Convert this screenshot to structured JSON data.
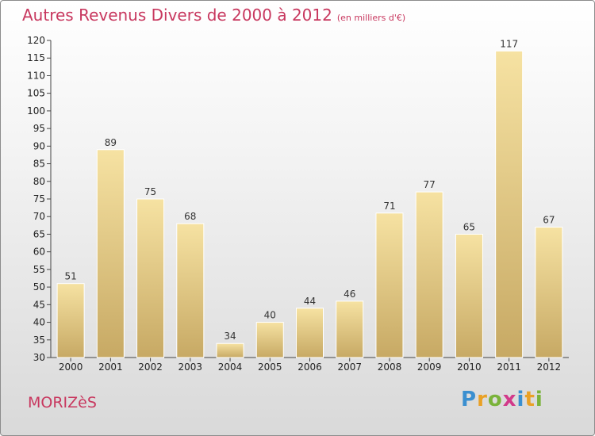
{
  "title": "Autres Revenus Divers de 2000 à 2012",
  "subtitle": "(en milliers d'€)",
  "place_name": "MORIZèS",
  "logo": {
    "letters": [
      "P",
      "r",
      "o",
      "x",
      "i",
      "t",
      "i"
    ],
    "colors": [
      "#3a8fd0",
      "#e9a126",
      "#7ab33a",
      "#d23a8a",
      "#3a8fd0",
      "#e9a126",
      "#7ab33a"
    ]
  },
  "colors": {
    "title": "#c8385f",
    "bar_light": "#f6e2a2",
    "bar_dark": "#c7a964"
  },
  "chart_data": {
    "type": "bar",
    "categories": [
      "2000",
      "2001",
      "2002",
      "2003",
      "2004",
      "2005",
      "2006",
      "2007",
      "2008",
      "2009",
      "2010",
      "2011",
      "2012"
    ],
    "values": [
      51,
      89,
      75,
      68,
      34,
      40,
      44,
      46,
      71,
      77,
      65,
      117,
      67
    ],
    "title": "Autres Revenus Divers de 2000 à 2012",
    "xlabel": "",
    "ylabel": "",
    "ylim": [
      30,
      120
    ],
    "ytick_step": 5,
    "grid": false,
    "legend": "none"
  }
}
